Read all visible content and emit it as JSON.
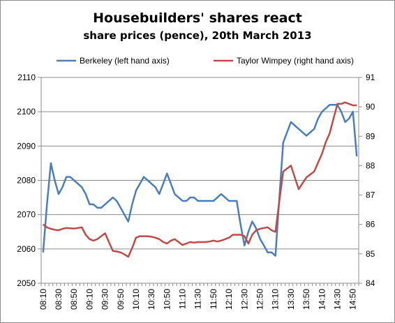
{
  "chart_data": {
    "type": "line",
    "title": "Housebuilders' shares react",
    "subtitle": "share prices (pence), 20th March 2013",
    "legend_placement": "top",
    "grid": true,
    "x": [
      "08:10",
      "08:15",
      "08:20",
      "08:25",
      "08:30",
      "08:35",
      "08:40",
      "08:45",
      "08:50",
      "08:55",
      "09:00",
      "09:05",
      "09:10",
      "09:15",
      "09:20",
      "09:25",
      "09:30",
      "09:35",
      "09:40",
      "09:45",
      "09:50",
      "09:55",
      "10:00",
      "10:05",
      "10:10",
      "10:15",
      "10:20",
      "10:25",
      "10:30",
      "10:35",
      "10:40",
      "10:45",
      "10:50",
      "10:55",
      "11:00",
      "11:05",
      "11:10",
      "11:15",
      "11:20",
      "11:25",
      "11:30",
      "11:35",
      "11:40",
      "11:45",
      "11:50",
      "11:55",
      "12:00",
      "12:05",
      "12:10",
      "12:15",
      "12:20",
      "12:25",
      "12:30",
      "12:35",
      "12:40",
      "12:45",
      "12:50",
      "12:55",
      "13:00",
      "13:05",
      "13:10",
      "13:15",
      "13:20",
      "13:25",
      "13:30",
      "13:35",
      "13:40",
      "13:45",
      "13:50",
      "13:55",
      "14:00",
      "14:05",
      "14:10",
      "14:15",
      "14:20",
      "14:25",
      "14:30",
      "14:35",
      "14:40",
      "14:45",
      "14:50",
      "14:55"
    ],
    "x_tick_labels": [
      "08:10",
      "08:30",
      "08:50",
      "09:10",
      "09:30",
      "09:50",
      "10:10",
      "10:30",
      "10:50",
      "11:10",
      "11:30",
      "11:50",
      "12:10",
      "12:30",
      "12:50",
      "13:10",
      "13:30",
      "13:50",
      "14:10",
      "14:30",
      "14:50"
    ],
    "left_axis": {
      "ylim": [
        2050,
        2110
      ],
      "ticks": [
        2050,
        2060,
        2070,
        2080,
        2090,
        2100,
        2110
      ]
    },
    "right_axis": {
      "ylim": [
        84,
        91
      ],
      "ticks": [
        84,
        85,
        86,
        87,
        88,
        89,
        90,
        91
      ]
    },
    "series": [
      {
        "name": "Berkeley (left hand axis)",
        "axis": "left",
        "color": "#4a7ebb",
        "values": [
          2059,
          2073,
          2085,
          2080,
          2076,
          2078,
          2081,
          2081,
          2080,
          2079,
          2078,
          2076,
          2073,
          2073,
          2072,
          2072,
          2073,
          2074,
          2075,
          2074,
          2072,
          2070,
          2068,
          2073,
          2077,
          2079,
          2081,
          2080,
          2079,
          2078,
          2076,
          2079,
          2082,
          2079,
          2076,
          2075,
          2074,
          2074,
          2075,
          2075,
          2074,
          2074,
          2074,
          2074,
          2074,
          2075,
          2076,
          2075,
          2074,
          2074,
          2074,
          2067,
          2061,
          2065,
          2068,
          2066,
          2063,
          2061,
          2059,
          2059,
          2058,
          2075,
          2091,
          2094,
          2097,
          2096,
          2095,
          2094,
          2093,
          2094,
          2095,
          2098,
          2100,
          2101,
          2102,
          2102,
          2102,
          2100,
          2097,
          2098,
          2100,
          2087
        ]
      },
      {
        "name": "Taylor Wimpey (right hand axis)",
        "axis": "right",
        "color": "#be4b48",
        "values": [
          86.0,
          85.9,
          85.85,
          85.82,
          85.8,
          85.85,
          85.88,
          85.87,
          85.86,
          85.88,
          85.9,
          85.65,
          85.5,
          85.45,
          85.5,
          85.6,
          85.7,
          85.4,
          85.1,
          85.08,
          85.05,
          84.98,
          84.9,
          85.2,
          85.55,
          85.6,
          85.6,
          85.6,
          85.58,
          85.55,
          85.5,
          85.4,
          85.35,
          85.45,
          85.5,
          85.4,
          85.3,
          85.35,
          85.4,
          85.38,
          85.4,
          85.4,
          85.4,
          85.42,
          85.45,
          85.42,
          85.45,
          85.5,
          85.55,
          85.65,
          85.65,
          85.65,
          85.6,
          85.35,
          85.65,
          85.8,
          85.85,
          85.88,
          85.9,
          85.8,
          85.75,
          86.8,
          87.8,
          87.9,
          88.0,
          87.6,
          87.2,
          87.4,
          87.6,
          87.7,
          87.8,
          88.1,
          88.4,
          88.8,
          89.1,
          89.6,
          90.1,
          90.1,
          90.15,
          90.1,
          90.05,
          90.05
        ]
      }
    ]
  }
}
